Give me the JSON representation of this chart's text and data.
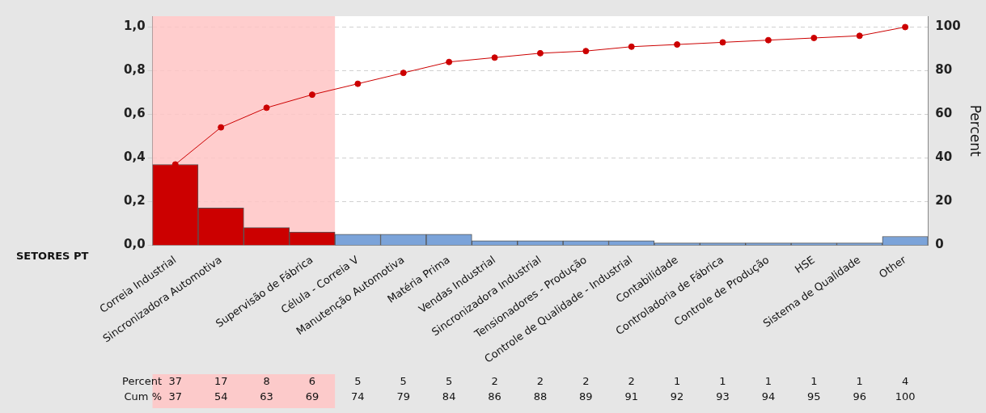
{
  "chart_data": {
    "type": "bar",
    "xlabel": "SETORES PT",
    "y2label": "Percent",
    "categories": [
      "Correia Industrial",
      "Sincronizadora Automotiva",
      null,
      "Supervisão de Fábrica",
      "Célula - Correia V",
      "Manutenção Automotiva",
      "Matéria Prima",
      "Vendas Industrial",
      "Sincronizadora Industrial",
      "Tensionadores - Produção",
      "Controle de Qualidade - Industrial",
      "Contabilidade",
      "Controladoria de Fábrica",
      "Controle de Produção",
      "HSE",
      "Sistema de Qualidade",
      "Other"
    ],
    "series": [
      {
        "axis": "y2",
        "colors": [
          "#cc0000",
          "#cc0000",
          "#cc0000",
          "#cc0000",
          "#7ba3d9",
          "#7ba3d9",
          "#7ba3d9",
          "#7ba3d9",
          "#7ba3d9",
          "#7ba3d9",
          "#7ba3d9",
          "#7ba3d9",
          "#7ba3d9",
          "#7ba3d9",
          "#7ba3d9",
          "#7ba3d9",
          "#7ba3d9"
        ],
        "values": [
          37,
          17,
          8,
          6,
          5,
          5,
          5,
          2,
          2,
          2,
          2,
          1,
          1,
          1,
          1,
          1,
          4
        ],
        "value_labels": [
          "37",
          "17",
          "8",
          "6",
          "5",
          "5",
          "5",
          "2",
          "2",
          "2",
          "2",
          "1",
          "1",
          "1",
          "1",
          "1",
          "4"
        ]
      },
      {
        "type": "line",
        "axis": "y2",
        "color": "#cc0000",
        "marker": "circle",
        "values": [
          37,
          54,
          63,
          69,
          74,
          79,
          84,
          86,
          88,
          89,
          91,
          92,
          93,
          94,
          95,
          96,
          100
        ],
        "value_labels": [
          "37",
          "54",
          "63",
          "69",
          "74",
          "79",
          "84",
          "86",
          "88",
          "89",
          "91",
          "92",
          "93",
          "94",
          "95",
          "96",
          "100"
        ]
      }
    ],
    "annotations": [
      "Percent",
      "Cum %"
    ],
    "bands": [
      {
        "axis": "x",
        "from": "Correia Industrial",
        "to": "Supervisão de Fábrica",
        "color": "#ffc4c4"
      }
    ],
    "ylim": [
      0,
      1.05
    ],
    "yticks": [
      {
        "value": 0,
        "label": "0,0"
      },
      {
        "value": 0.2,
        "label": "0,2"
      },
      {
        "value": 0.4,
        "label": "0,4"
      },
      {
        "value": 0.6,
        "label": "0,6"
      },
      {
        "value": 0.8,
        "label": "0,8"
      },
      {
        "value": 1,
        "label": "1,0"
      }
    ],
    "y2lim": [
      0,
      105
    ],
    "y2ticks": [
      0,
      20,
      40,
      60,
      80,
      100
    ],
    "grid": "y",
    "legend": false
  }
}
